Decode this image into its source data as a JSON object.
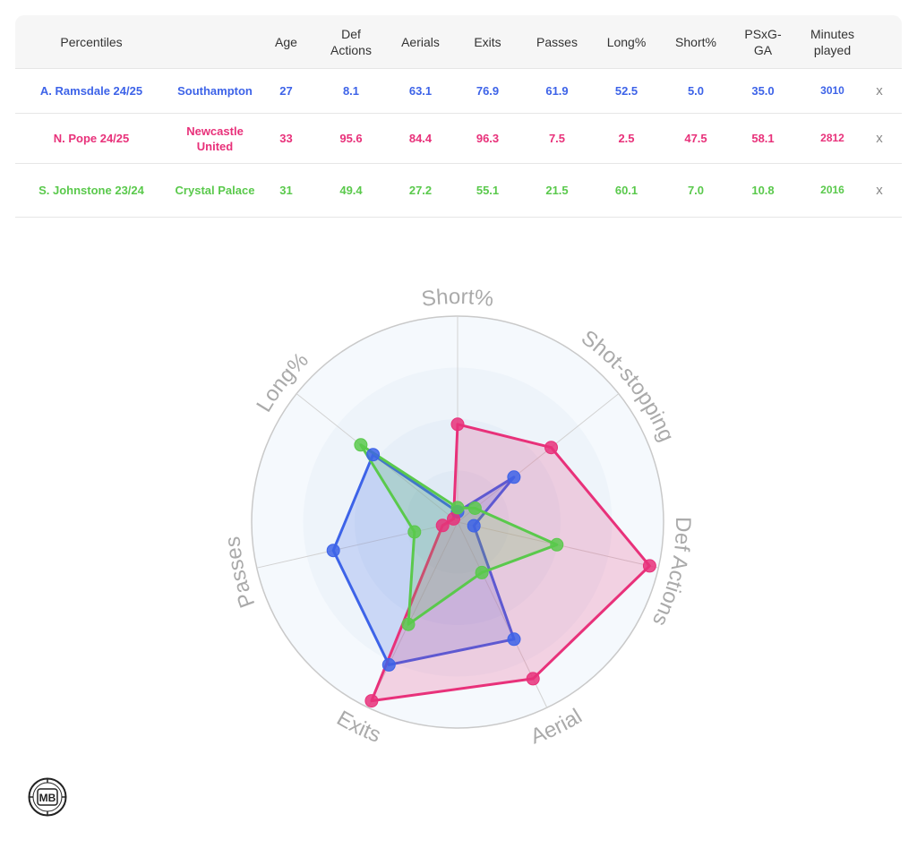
{
  "table": {
    "headers": [
      {
        "key": "label",
        "text": "Percentiles"
      },
      {
        "key": "age",
        "text": "Age"
      },
      {
        "key": "def",
        "text": "Def Actions"
      },
      {
        "key": "aerials",
        "text": "Aerials"
      },
      {
        "key": "exits",
        "text": "Exits"
      },
      {
        "key": "passes",
        "text": "Passes"
      },
      {
        "key": "long",
        "text": "Long%"
      },
      {
        "key": "short",
        "text": "Short%"
      },
      {
        "key": "psxg",
        "text": "PSxG-GA"
      },
      {
        "key": "minutes",
        "text": "Minutes played"
      }
    ],
    "rows": [
      {
        "name": "A. Ramsdale 24/25",
        "team": "Southampton",
        "age": "27",
        "def": "8.1",
        "aerials": "63.1",
        "exits": "76.9",
        "passes": "61.9",
        "long": "52.5",
        "short": "5.0",
        "psxg": "35.0",
        "minutes": "3010",
        "remove": "x",
        "color": "#3d63e8"
      },
      {
        "name": "N. Pope 24/25",
        "team": "Newcastle United",
        "age": "33",
        "def": "95.6",
        "aerials": "84.4",
        "exits": "96.3",
        "passes": "7.5",
        "long": "2.5",
        "short": "47.5",
        "psxg": "58.1",
        "minutes": "2812",
        "remove": "x",
        "color": "#e8317a"
      },
      {
        "name": "S. Johnstone 23/24",
        "team": "Crystal Palace",
        "age": "31",
        "def": "49.4",
        "aerials": "27.2",
        "exits": "55.1",
        "passes": "21.5",
        "long": "60.1",
        "short": "7.0",
        "psxg": "10.8",
        "minutes": "2016",
        "remove": "x",
        "color": "#5ac94c"
      }
    ]
  },
  "chart_data": {
    "type": "radar",
    "axes": [
      "Short%",
      "Shot-stopping",
      "Def Actions",
      "Aerial",
      "Exits",
      "Passes",
      "Long%"
    ],
    "range": [
      0,
      100
    ],
    "grid_rings": 4,
    "series": [
      {
        "name": "A. Ramsdale 24/25",
        "color": "#3d63e8",
        "values": [
          5.0,
          35.0,
          8.1,
          63.1,
          76.9,
          61.9,
          52.5
        ]
      },
      {
        "name": "N. Pope 24/25",
        "color": "#e8317a",
        "values": [
          47.5,
          58.1,
          95.6,
          84.4,
          96.3,
          7.5,
          2.5
        ]
      },
      {
        "name": "S. Johnstone 23/24",
        "color": "#5ac94c",
        "values": [
          7.0,
          10.8,
          49.4,
          27.2,
          55.1,
          21.5,
          60.1
        ]
      }
    ]
  },
  "logo": {
    "text": "MB"
  }
}
